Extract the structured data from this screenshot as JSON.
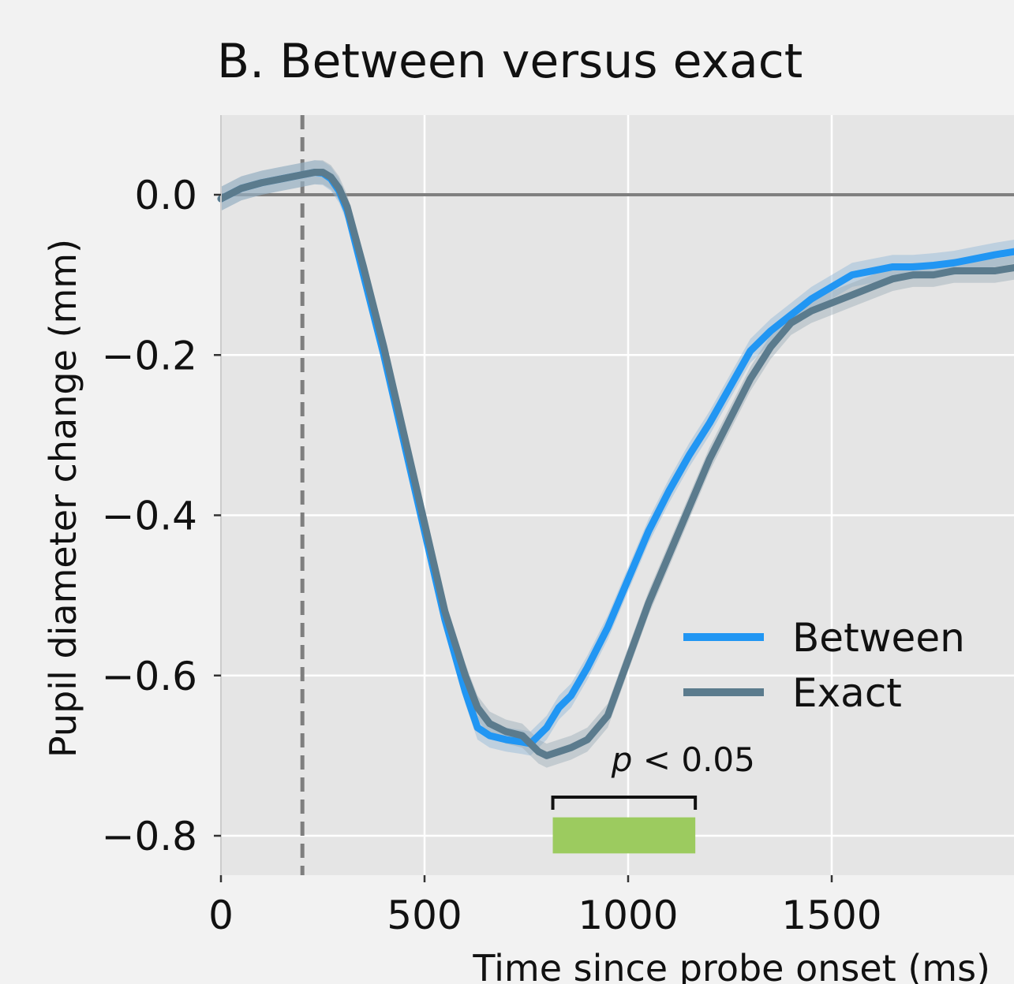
{
  "chart_data": {
    "type": "line",
    "title": "B. Between versus exact",
    "xlabel": "Time since probe onset (ms)",
    "ylabel": "Pupil diameter change (mm)",
    "xlim": [
      0,
      1960
    ],
    "ylim": [
      -0.84,
      0.1
    ],
    "xticks": [
      0,
      500,
      1000,
      1500
    ],
    "xtick_labels": [
      "0",
      "500",
      "1000",
      "1500"
    ],
    "yticks": [
      0.0,
      -0.2,
      -0.4,
      -0.6,
      -0.8
    ],
    "ytick_labels": [
      "0.0",
      "−0.2",
      "−0.4",
      "−0.6",
      "−0.8"
    ],
    "grid": true,
    "legend_position": "right",
    "reference_lines": {
      "horizontal_y": 0.0,
      "vertical_dashed_x": 200
    },
    "series": [
      {
        "name": "Between",
        "color": "#2196f3",
        "band_color": "#8fb6d8",
        "x": [
          0,
          50,
          100,
          150,
          200,
          230,
          250,
          270,
          290,
          310,
          350,
          400,
          450,
          500,
          550,
          600,
          630,
          660,
          700,
          740,
          760,
          780,
          800,
          830,
          860,
          900,
          950,
          1000,
          1050,
          1100,
          1150,
          1200,
          1250,
          1300,
          1350,
          1400,
          1450,
          1500,
          1550,
          1600,
          1650,
          1700,
          1750,
          1800,
          1850,
          1900,
          1960
        ],
        "y": [
          -0.005,
          0.008,
          0.015,
          0.02,
          0.025,
          0.028,
          0.027,
          0.02,
          0.005,
          -0.02,
          -0.1,
          -0.2,
          -0.31,
          -0.42,
          -0.53,
          -0.62,
          -0.665,
          -0.675,
          -0.68,
          -0.683,
          -0.685,
          -0.675,
          -0.665,
          -0.64,
          -0.625,
          -0.59,
          -0.54,
          -0.48,
          -0.42,
          -0.37,
          -0.325,
          -0.285,
          -0.24,
          -0.195,
          -0.17,
          -0.15,
          -0.13,
          -0.115,
          -0.1,
          -0.095,
          -0.09,
          -0.09,
          -0.088,
          -0.085,
          -0.08,
          -0.075,
          -0.07
        ],
        "ci": 0.015
      },
      {
        "name": "Exact",
        "color": "#5b7b8d",
        "band_color": "#9aabb5",
        "x": [
          0,
          50,
          100,
          150,
          200,
          230,
          250,
          270,
          290,
          310,
          350,
          400,
          450,
          500,
          550,
          600,
          630,
          660,
          700,
          740,
          760,
          780,
          800,
          830,
          860,
          900,
          950,
          1000,
          1050,
          1100,
          1150,
          1200,
          1250,
          1300,
          1350,
          1400,
          1450,
          1500,
          1550,
          1600,
          1650,
          1700,
          1750,
          1800,
          1850,
          1900,
          1960
        ],
        "y": [
          -0.005,
          0.008,
          0.015,
          0.02,
          0.025,
          0.028,
          0.028,
          0.022,
          0.008,
          -0.015,
          -0.09,
          -0.19,
          -0.3,
          -0.41,
          -0.52,
          -0.6,
          -0.64,
          -0.66,
          -0.67,
          -0.675,
          -0.685,
          -0.695,
          -0.7,
          -0.695,
          -0.69,
          -0.68,
          -0.65,
          -0.58,
          -0.51,
          -0.45,
          -0.39,
          -0.33,
          -0.28,
          -0.23,
          -0.19,
          -0.16,
          -0.145,
          -0.135,
          -0.125,
          -0.115,
          -0.105,
          -0.1,
          -0.1,
          -0.095,
          -0.095,
          -0.095,
          -0.09
        ],
        "ci": 0.015
      }
    ],
    "significance": {
      "label": "p < 0.05",
      "x_start": 815,
      "x_end": 1165,
      "color": "#9ccb5f"
    }
  }
}
